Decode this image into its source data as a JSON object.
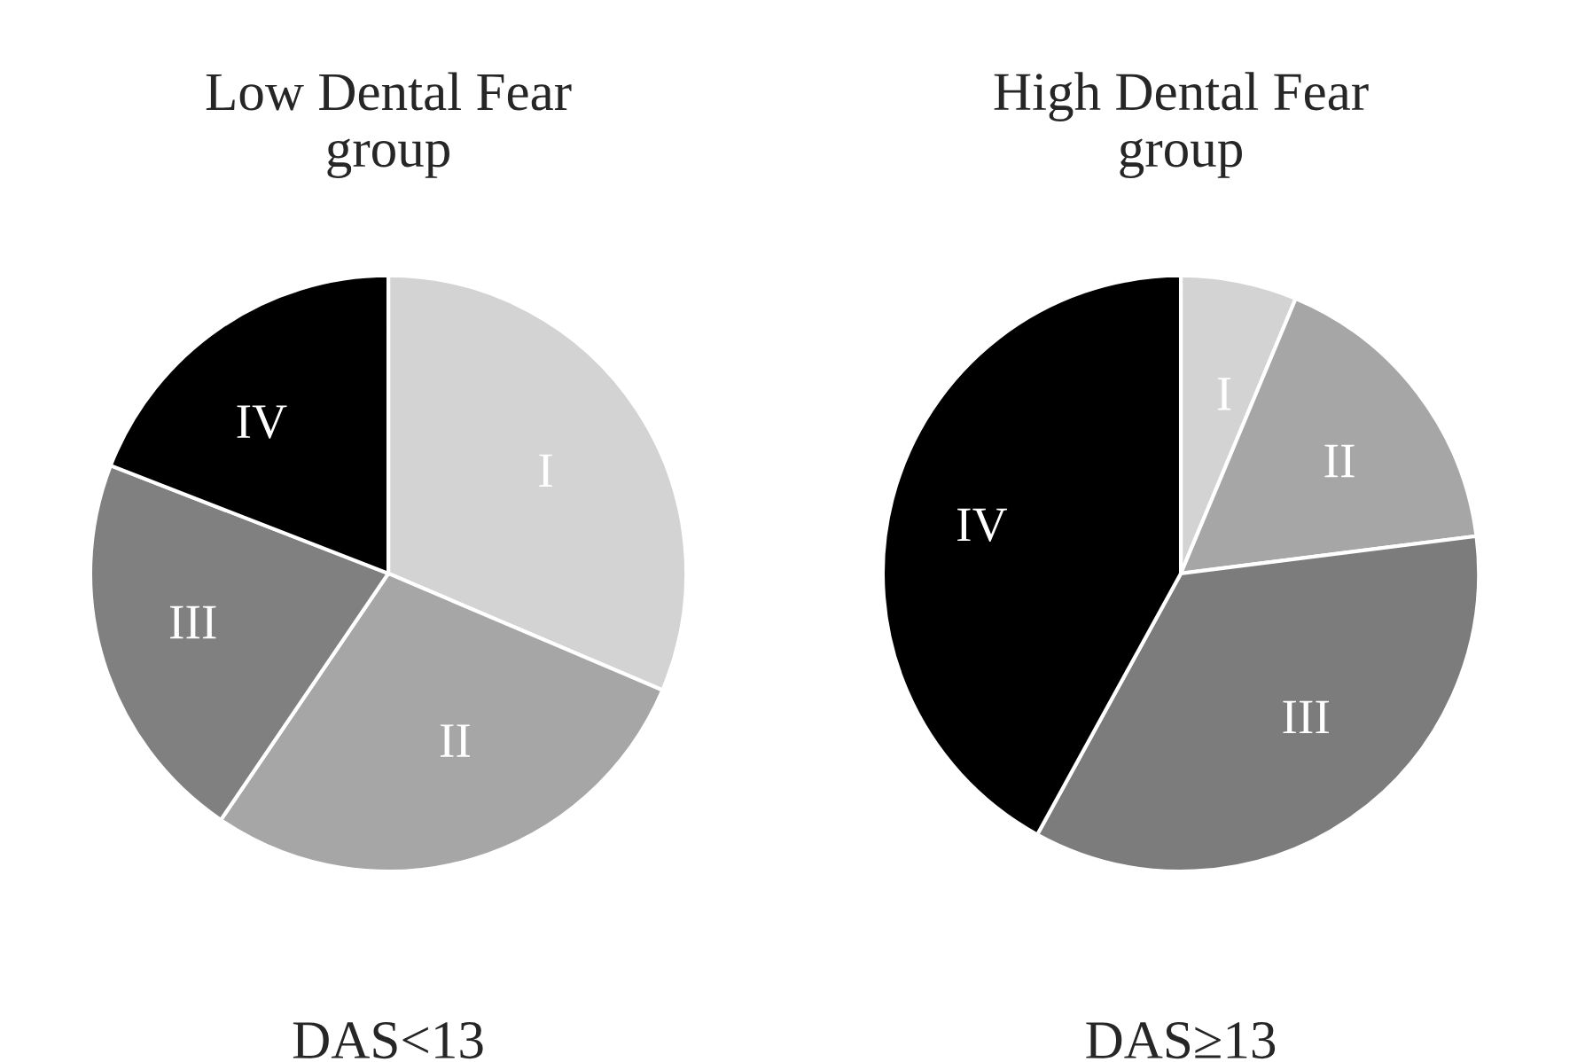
{
  "chart_data": [
    {
      "type": "pie",
      "title": "Low Dental Fear\ngroup",
      "categories": [
        "I",
        "II",
        "III",
        "IV"
      ],
      "values": [
        31.4,
        28.1,
        21.4,
        19.1
      ],
      "colors": [
        "#d3d3d3",
        "#a6a6a6",
        "#808080",
        "#000000"
      ],
      "annotations": [
        "DAS<13"
      ]
    },
    {
      "type": "pie",
      "title": "High Dental Fear\ngroup",
      "categories": [
        "I",
        "II",
        "III",
        "IV"
      ],
      "values": [
        6.3,
        16.7,
        35.0,
        42.0
      ],
      "colors": [
        "#d3d3d3",
        "#a6a6a6",
        "#7c7c7c",
        "#000000"
      ],
      "annotations": [
        "DAS≥13"
      ]
    }
  ]
}
